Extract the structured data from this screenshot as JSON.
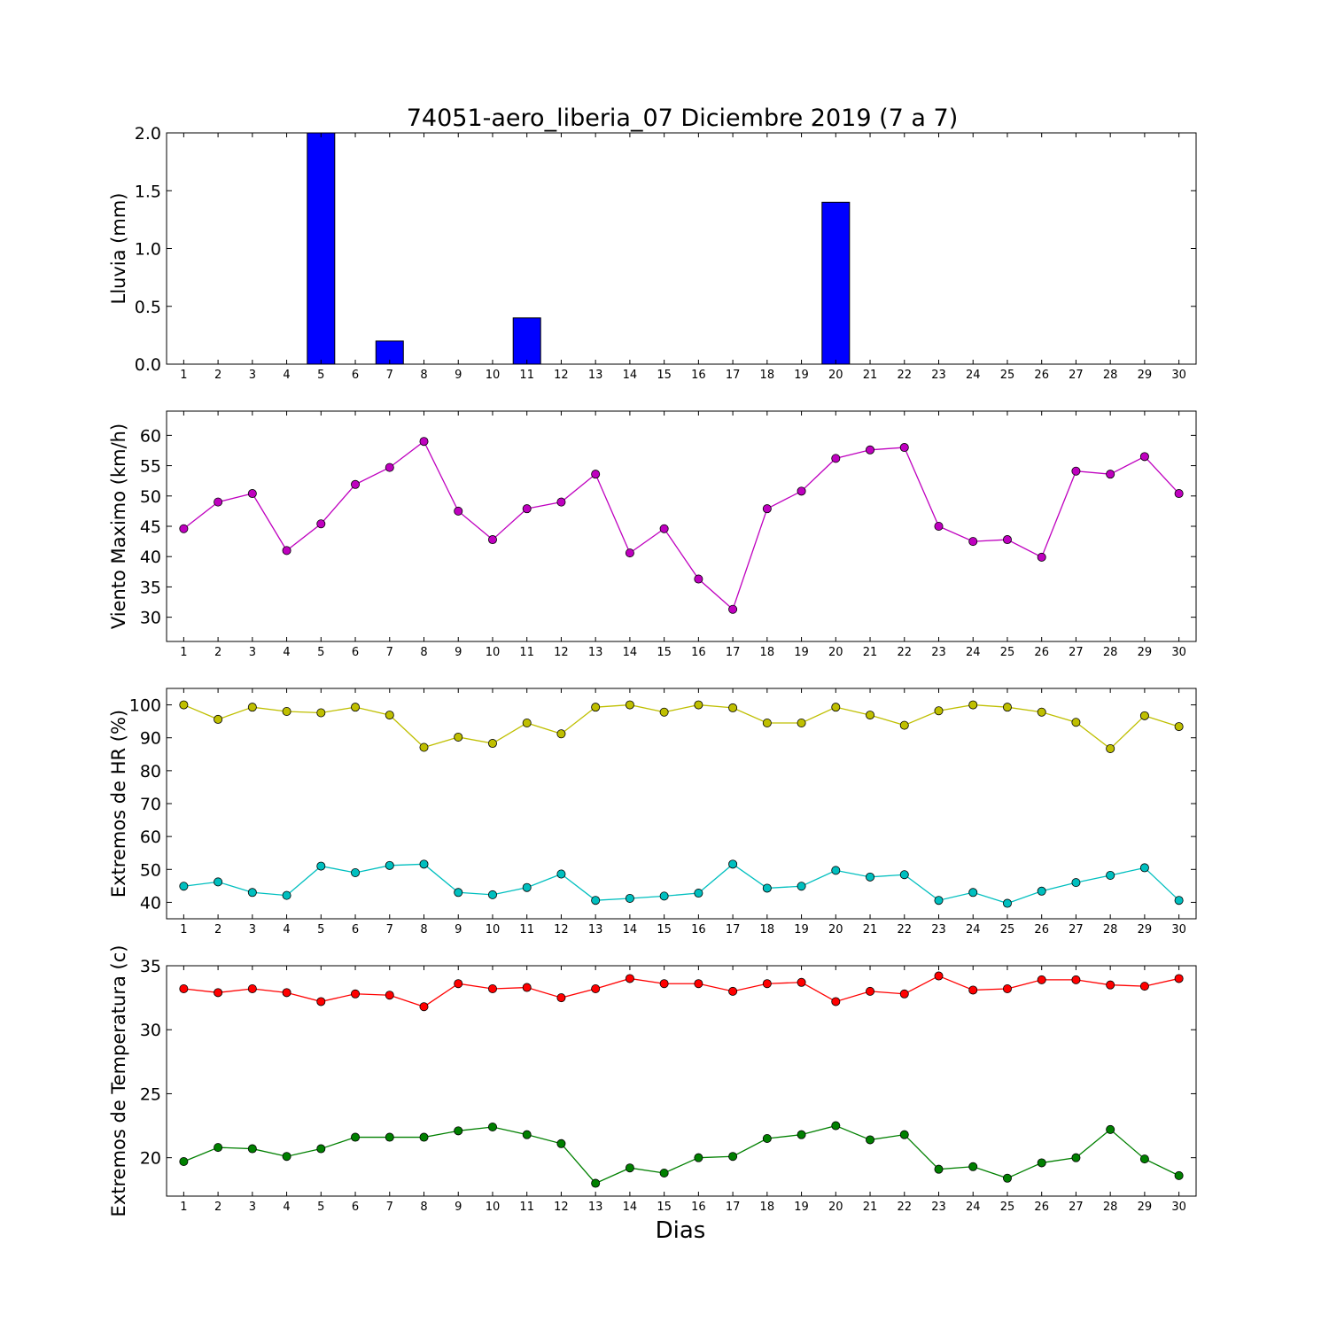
{
  "title": "74051-aero_liberia_07 Diciembre 2019  (7 a 7)",
  "xlabel": "Dias",
  "chart_data": [
    {
      "type": "bar",
      "ylabel": "Lluvia (mm)",
      "ylim": [
        0,
        2.0
      ],
      "yticks": [
        "0.0",
        "0.5",
        "1.0",
        "1.5",
        "2.0"
      ],
      "xlim": [
        0.5,
        30.5
      ],
      "x": [
        1,
        2,
        3,
        4,
        5,
        6,
        7,
        8,
        9,
        10,
        11,
        12,
        13,
        14,
        15,
        16,
        17,
        18,
        19,
        20,
        21,
        22,
        23,
        24,
        25,
        26,
        27,
        28,
        29,
        30
      ],
      "series": [
        {
          "color": "#0000ff",
          "values": [
            0,
            0,
            0,
            0,
            2.0,
            0,
            0.2,
            0,
            0,
            0,
            0.4,
            0,
            0,
            0,
            0,
            0,
            0,
            0,
            0,
            1.4,
            0,
            0,
            0,
            0,
            0,
            0,
            0,
            0,
            0,
            0
          ]
        }
      ],
      "grid": false
    },
    {
      "type": "line",
      "ylabel": "Viento Maximo (km/h)",
      "ylim": [
        26,
        64
      ],
      "yticks": [
        "30",
        "35",
        "40",
        "45",
        "50",
        "55",
        "60"
      ],
      "xlim": [
        0.5,
        30.5
      ],
      "x": [
        1,
        2,
        3,
        4,
        5,
        6,
        7,
        8,
        9,
        10,
        11,
        12,
        13,
        14,
        15,
        16,
        17,
        18,
        19,
        20,
        21,
        22,
        23,
        24,
        25,
        26,
        27,
        28,
        29,
        30
      ],
      "series": [
        {
          "color": "#bf00bf",
          "values": [
            44.6,
            49.0,
            50.4,
            41.0,
            45.4,
            51.9,
            54.7,
            59.0,
            47.5,
            42.8,
            47.9,
            49.0,
            53.6,
            40.6,
            44.6,
            36.3,
            31.3,
            47.9,
            50.8,
            56.2,
            57.6,
            58.0,
            45.0,
            42.5,
            42.8,
            39.9,
            54.1,
            53.6,
            56.5,
            50.4
          ]
        }
      ],
      "grid": false
    },
    {
      "type": "line",
      "ylabel": "Extremos de HR (%)",
      "ylim": [
        35,
        105
      ],
      "yticks": [
        "40",
        "50",
        "60",
        "70",
        "80",
        "90",
        "100"
      ],
      "xlim": [
        0.5,
        30.5
      ],
      "x": [
        1,
        2,
        3,
        4,
        5,
        6,
        7,
        8,
        9,
        10,
        11,
        12,
        13,
        14,
        15,
        16,
        17,
        18,
        19,
        20,
        21,
        22,
        23,
        24,
        25,
        26,
        27,
        28,
        29,
        30
      ],
      "series": [
        {
          "color": "#bfbf00",
          "values": [
            100,
            95.6,
            99.3,
            98.0,
            97.6,
            99.3,
            96.9,
            87.1,
            90.2,
            88.3,
            94.5,
            91.2,
            99.3,
            100,
            97.8,
            100,
            99.1,
            94.5,
            94.5,
            99.3,
            96.9,
            93.8,
            98.2,
            100,
            99.3,
            97.8,
            94.7,
            86.7,
            96.7,
            93.4
          ]
        },
        {
          "color": "#00bfbf",
          "values": [
            44.9,
            46.2,
            43.0,
            42.1,
            51.0,
            49.0,
            51.2,
            51.6,
            43.0,
            42.3,
            44.5,
            48.6,
            40.6,
            41.2,
            41.9,
            42.8,
            51.6,
            44.3,
            44.9,
            49.7,
            47.7,
            48.4,
            40.6,
            43.0,
            39.7,
            43.4,
            46.0,
            48.2,
            50.5,
            40.6
          ]
        }
      ],
      "grid": false
    },
    {
      "type": "line",
      "ylabel": "Extremos de Temperatura (c)",
      "ylim": [
        17,
        35
      ],
      "yticks": [
        "20",
        "25",
        "30",
        "35"
      ],
      "xlim": [
        0.5,
        30.5
      ],
      "x": [
        1,
        2,
        3,
        4,
        5,
        6,
        7,
        8,
        9,
        10,
        11,
        12,
        13,
        14,
        15,
        16,
        17,
        18,
        19,
        20,
        21,
        22,
        23,
        24,
        25,
        26,
        27,
        28,
        29,
        30
      ],
      "series": [
        {
          "color": "#ff0000",
          "values": [
            33.2,
            32.9,
            33.2,
            32.9,
            32.2,
            32.8,
            32.7,
            31.8,
            33.6,
            33.2,
            33.3,
            32.5,
            33.2,
            34.0,
            33.6,
            33.6,
            33.0,
            33.6,
            33.7,
            32.2,
            33.0,
            32.8,
            34.2,
            33.1,
            33.2,
            33.9,
            33.9,
            33.5,
            33.4,
            34.0
          ]
        },
        {
          "color": "#008000",
          "values": [
            19.7,
            20.8,
            20.7,
            20.1,
            20.7,
            21.6,
            21.6,
            21.6,
            22.1,
            22.4,
            21.8,
            21.1,
            18.0,
            19.2,
            18.8,
            20.0,
            20.1,
            21.5,
            21.8,
            22.5,
            21.4,
            21.8,
            19.1,
            19.3,
            18.4,
            19.6,
            20.0,
            22.2,
            19.9,
            18.6
          ]
        }
      ],
      "grid": false
    }
  ]
}
